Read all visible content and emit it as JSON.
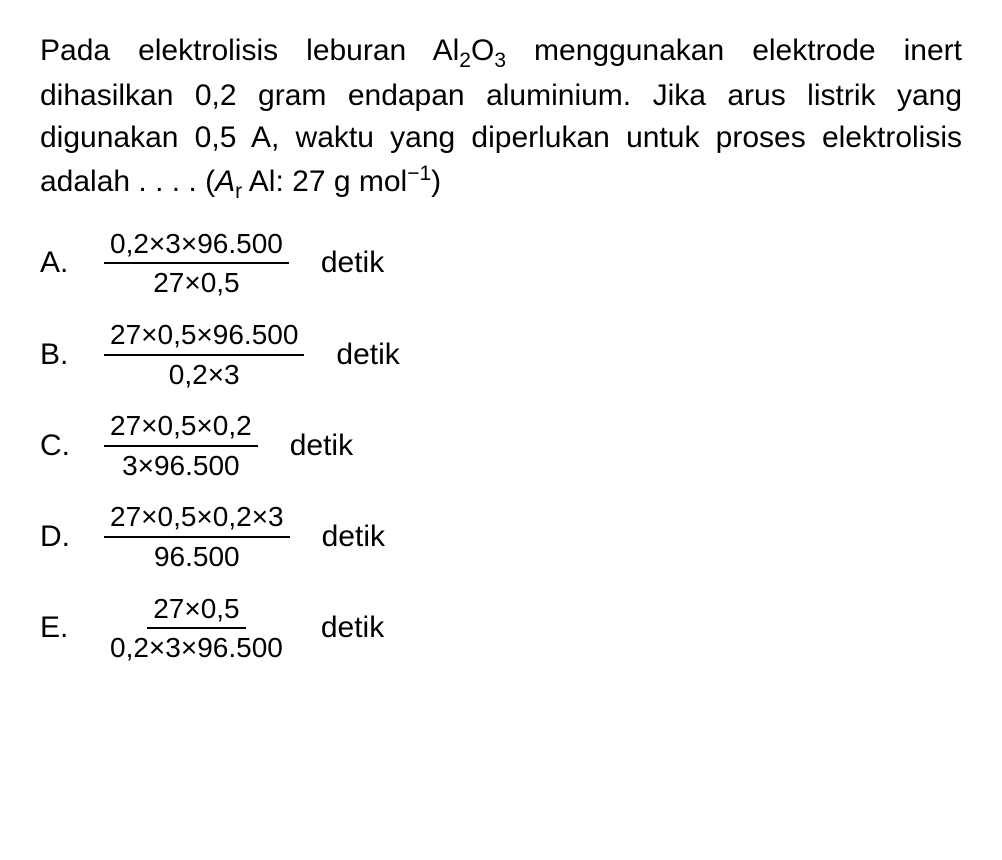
{
  "question": {
    "line1_part1": "Pada elektrolisis leburan Al",
    "line1_sub1": "2",
    "line1_part2": "O",
    "line1_sub2": "3",
    "line1_part3": " menggunakan elektrode inert dihasilkan 0,2 gram endapan aluminium. Jika arus listrik yang digunakan 0,5 A, waktu yang diperlukan untuk proses elektrolisis adalah . . . . (",
    "ar_italic": "A",
    "ar_sub": "r",
    "ar_text": " Al: 27 g mol",
    "ar_sup": "−1",
    "line1_end": ")"
  },
  "options": {
    "a": {
      "label": "A.",
      "numerator": "0,2×3×96.500",
      "denominator": "27×0,5",
      "unit": "detik"
    },
    "b": {
      "label": "B.",
      "numerator": "27×0,5×96.500",
      "denominator": "0,2×3",
      "unit": "detik"
    },
    "c": {
      "label": "C.",
      "numerator": "27×0,5×0,2",
      "denominator": "3×96.500",
      "unit": "detik"
    },
    "d": {
      "label": "D.",
      "numerator": "27×0,5×0,2×3",
      "denominator": "96.500",
      "unit": "detik"
    },
    "e": {
      "label": "E.",
      "numerator": "27×0,5",
      "denominator": "0,2×3×96.500",
      "unit": "detik"
    }
  },
  "styling": {
    "background_color": "#ffffff",
    "text_color": "#000000",
    "font_family": "Arial",
    "question_fontsize": 30,
    "option_fontsize": 30,
    "fraction_fontsize": 28,
    "border_color": "#000000",
    "border_width": 2
  }
}
